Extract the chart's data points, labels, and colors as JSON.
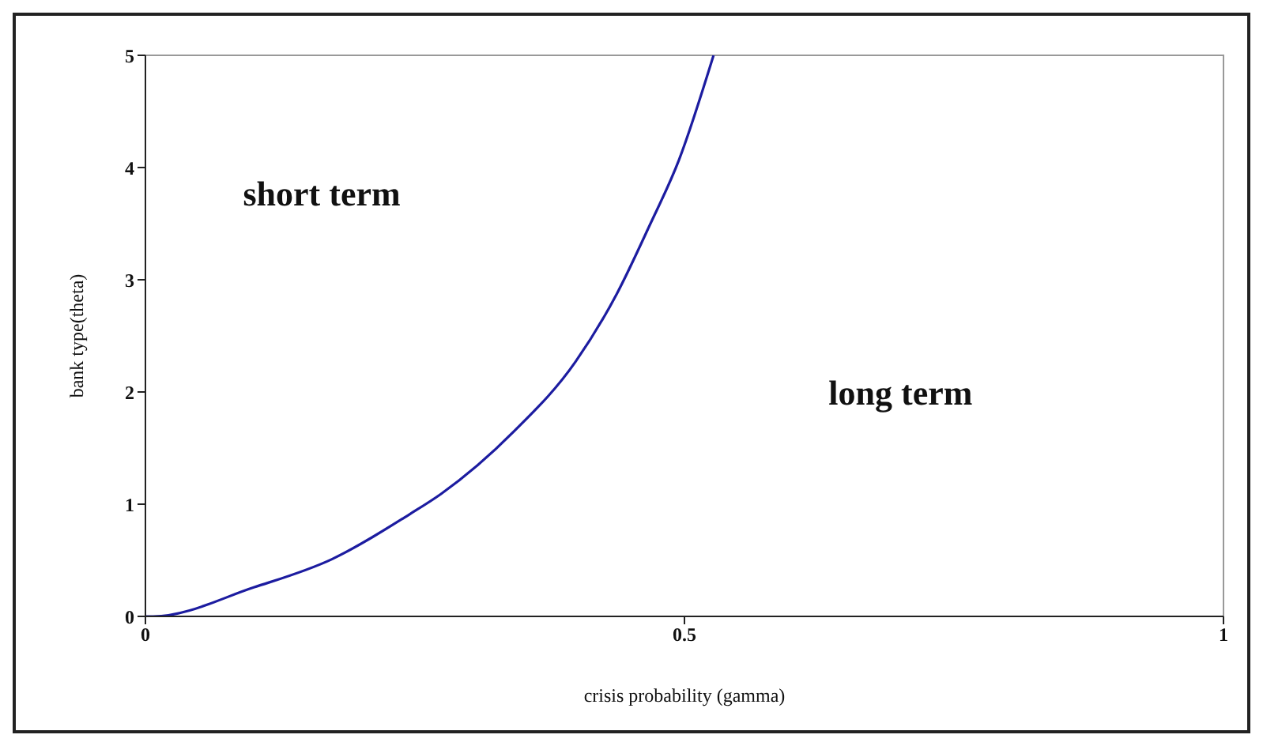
{
  "chart_data": {
    "type": "line",
    "xlabel": "crisis probability (gamma)",
    "ylabel": "bank type(theta)",
    "x": [
      0,
      0.007,
      0.101,
      0.173,
      0.245,
      0.274,
      0.342,
      0.399,
      0.437,
      0.467,
      0.495,
      0.527
    ],
    "series": [
      {
        "color": "#1c1ca0",
        "values": [
          0,
          0,
          0.26,
          0.51,
          0.91,
          1.09,
          1.65,
          2.27,
          2.87,
          3.47,
          4.07,
          5.0
        ]
      }
    ],
    "xlim": [
      0,
      1
    ],
    "xticks": [
      0,
      0.5,
      1
    ],
    "ylim": [
      0,
      5
    ],
    "yticks": [
      0,
      1,
      2,
      3,
      4,
      5
    ],
    "annotations": [
      "short term",
      "long term"
    ],
    "grid": false,
    "marker": "none",
    "line_style": "solid"
  }
}
